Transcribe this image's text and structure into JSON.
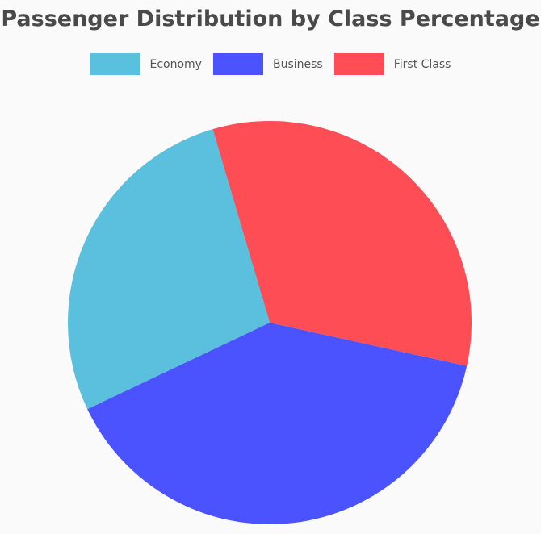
{
  "chart_data": {
    "type": "pie",
    "title": "Passenger Distribution by Class Percentage",
    "legend_position": "top",
    "slices": [
      {
        "label": "Economy",
        "value": 27.5,
        "color": "#5bc0de"
      },
      {
        "label": "Business",
        "value": 39.5,
        "color": "#4a53ff"
      },
      {
        "label": "First Class",
        "value": 33.0,
        "color": "#ff4d55"
      }
    ]
  }
}
